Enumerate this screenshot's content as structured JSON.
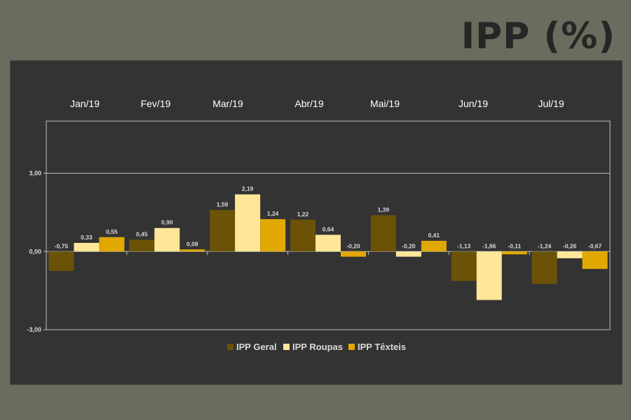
{
  "header": {
    "title": "IPP (%)"
  },
  "chart_data": {
    "type": "bar",
    "title": "IPP (%)",
    "categories": [
      "Jan/19",
      "Fev/19",
      "Mar/19",
      "Abr/19",
      "Mai/19",
      "Jun/19",
      "Jul/19"
    ],
    "series": [
      {
        "name": "IPP Geral",
        "color": "#6b5207",
        "values": [
          -0.75,
          0.45,
          1.59,
          1.22,
          1.39,
          -1.13,
          -1.24
        ]
      },
      {
        "name": "IPP Roupas",
        "color": "#ffe699",
        "values": [
          0.33,
          0.9,
          2.19,
          0.64,
          -0.2,
          -1.86,
          -0.26
        ]
      },
      {
        "name": "IPP Têxteis",
        "color": "#e0a800",
        "values": [
          0.55,
          0.08,
          1.24,
          -0.2,
          0.41,
          -0.11,
          -0.67
        ]
      }
    ],
    "data_labels": [
      [
        "-0,75",
        "0,33",
        "0,55"
      ],
      [
        "0,45",
        "0,90",
        "0,08"
      ],
      [
        "1,59",
        "2,19",
        "1,24"
      ],
      [
        "1,22",
        "0,64",
        "-0,20"
      ],
      [
        "1,39",
        "-0,20",
        "0,41"
      ],
      [
        "-1,13",
        "-1,86",
        "-0,11"
      ],
      [
        "-1,24",
        "-0,26",
        "-0,67"
      ]
    ],
    "y_ticks": [
      3,
      0,
      -3
    ],
    "y_tick_labels": [
      "3,00",
      "0,00",
      "-3,00"
    ],
    "ylim": [
      -3,
      5
    ],
    "gridlines": [
      3,
      0,
      -3
    ],
    "category_axis": "top",
    "legend": "bottom-center",
    "colors": {
      "panel": "#333333",
      "background": "#6b6c5e",
      "gridline": "#bfbfbf",
      "label": "#d9d9d9"
    }
  }
}
